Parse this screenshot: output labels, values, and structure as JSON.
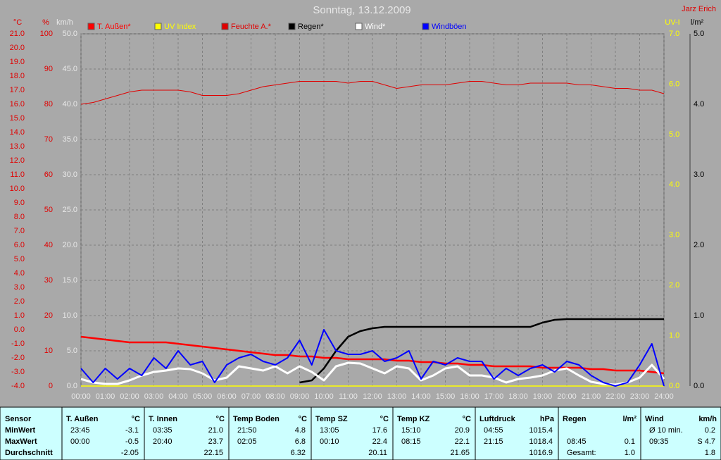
{
  "chart_data": {
    "type": "line",
    "title": "Sonntag, 13.12.2009",
    "author": "Jarz Erich",
    "grid": true,
    "x": [
      0,
      0.5,
      1,
      1.5,
      2,
      2.5,
      3,
      3.5,
      4,
      4.5,
      5,
      5.5,
      6,
      6.5,
      7,
      7.5,
      8,
      8.5,
      9,
      9.5,
      10,
      10.5,
      11,
      11.5,
      12,
      12.5,
      13,
      13.5,
      14,
      14.5,
      15,
      15.5,
      16,
      16.5,
      17,
      17.5,
      18,
      18.5,
      19,
      19.5,
      20,
      20.5,
      21,
      21.5,
      22,
      22.5,
      23,
      23.5,
      24
    ],
    "xlim": [
      0,
      24
    ],
    "xticks": [
      {
        "value": 0,
        "label": "00:00"
      },
      {
        "value": 1,
        "label": "01:00"
      },
      {
        "value": 2,
        "label": "02:00"
      },
      {
        "value": 3,
        "label": "03:00"
      },
      {
        "value": 4,
        "label": "04:00"
      },
      {
        "value": 5,
        "label": "05:00"
      },
      {
        "value": 6,
        "label": "06:00"
      },
      {
        "value": 7,
        "label": "07:00"
      },
      {
        "value": 8,
        "label": "08:00"
      },
      {
        "value": 9,
        "label": "09:00"
      },
      {
        "value": 10,
        "label": "10:00"
      },
      {
        "value": 11,
        "label": "11:00"
      },
      {
        "value": 12,
        "label": "12:00"
      },
      {
        "value": 13,
        "label": "13:00"
      },
      {
        "value": 14,
        "label": "14:00"
      },
      {
        "value": 15,
        "label": "15:00"
      },
      {
        "value": 16,
        "label": "16:00"
      },
      {
        "value": 17,
        "label": "17:00"
      },
      {
        "value": 18,
        "label": "18:00"
      },
      {
        "value": 19,
        "label": "19:00"
      },
      {
        "value": 20,
        "label": "20:00"
      },
      {
        "value": 21,
        "label": "21:00"
      },
      {
        "value": 22,
        "label": "22:00"
      },
      {
        "value": 23,
        "label": "23:00"
      },
      {
        "value": 24,
        "label": "24:00"
      }
    ],
    "axes": [
      {
        "label": "°C",
        "color": "#e00000",
        "lim": [
          -4,
          21
        ],
        "ticks": [
          {
            "value": -4,
            "label": "-4.0"
          },
          {
            "value": -3,
            "label": "-3.0"
          },
          {
            "value": -2,
            "label": "-2.0"
          },
          {
            "value": -1,
            "label": "-1.0"
          },
          {
            "value": 0,
            "label": "0.0"
          },
          {
            "value": 1,
            "label": "1.0"
          },
          {
            "value": 2,
            "label": "2.0"
          },
          {
            "value": 3,
            "label": "3.0"
          },
          {
            "value": 4,
            "label": "4.0"
          },
          {
            "value": 5,
            "label": "5.0"
          },
          {
            "value": 6,
            "label": "6.0"
          },
          {
            "value": 7,
            "label": "7.0"
          },
          {
            "value": 8,
            "label": "8.0"
          },
          {
            "value": 9,
            "label": "9.0"
          },
          {
            "value": 10,
            "label": "10.0"
          },
          {
            "value": 11,
            "label": "11.0"
          },
          {
            "value": 12,
            "label": "12.0"
          },
          {
            "value": 13,
            "label": "13.0"
          },
          {
            "value": 14,
            "label": "14.0"
          },
          {
            "value": 15,
            "label": "15.0"
          },
          {
            "value": 16,
            "label": "16.0"
          },
          {
            "value": 17,
            "label": "17.0"
          },
          {
            "value": 18,
            "label": "18.0"
          },
          {
            "value": 19,
            "label": "19.0"
          },
          {
            "value": 20,
            "label": "20.0"
          },
          {
            "value": 21,
            "label": "21.0"
          }
        ]
      },
      {
        "label": "%",
        "color": "#e00000",
        "lim": [
          0,
          100
        ],
        "ticks": [
          0,
          10,
          20,
          30,
          40,
          50,
          60,
          70,
          80,
          90,
          100
        ]
      },
      {
        "label": "km/h",
        "color": "#e8e8e8",
        "lim": [
          0,
          50
        ],
        "ticks": [
          {
            "value": 0,
            "label": "0.0"
          },
          {
            "value": 5,
            "label": "5.0"
          },
          {
            "value": 10,
            "label": "10.0"
          },
          {
            "value": 15,
            "label": "15.0"
          },
          {
            "value": 20,
            "label": "20.0"
          },
          {
            "value": 25,
            "label": "25.0"
          },
          {
            "value": 30,
            "label": "30.0"
          },
          {
            "value": 35,
            "label": "35.0"
          },
          {
            "value": 40,
            "label": "40.0"
          },
          {
            "value": 45,
            "label": "45.0"
          },
          {
            "value": 50,
            "label": "50.0"
          }
        ]
      },
      {
        "label": "UV-I",
        "color": "#ffff00",
        "lim": [
          0,
          7
        ],
        "ticks": [
          {
            "value": 0,
            "label": "0.0"
          },
          {
            "value": 1,
            "label": "1.0"
          },
          {
            "value": 2,
            "label": "2.0"
          },
          {
            "value": 3,
            "label": "3.0"
          },
          {
            "value": 4,
            "label": "4.0"
          },
          {
            "value": 5,
            "label": "5.0"
          },
          {
            "value": 6,
            "label": "6.0"
          },
          {
            "value": 7,
            "label": "7.0"
          }
        ]
      },
      {
        "label": "l/m²",
        "color": "#000000",
        "lim": [
          0,
          5
        ],
        "ticks": [
          {
            "value": 0,
            "label": "0.0"
          },
          {
            "value": 1,
            "label": "1.0"
          },
          {
            "value": 2,
            "label": "2.0"
          },
          {
            "value": 3,
            "label": "3.0"
          },
          {
            "value": 4,
            "label": "4.0"
          },
          {
            "value": 5,
            "label": "5.0"
          }
        ]
      }
    ],
    "series": [
      {
        "name": "T. Außen*",
        "color": "#ff0000",
        "axis": 0,
        "width": 2.5,
        "values": [
          -0.5,
          -0.6,
          -0.7,
          -0.8,
          -0.9,
          -0.9,
          -0.9,
          -0.9,
          -1.0,
          -1.1,
          -1.2,
          -1.3,
          -1.4,
          -1.5,
          -1.6,
          -1.7,
          -1.8,
          -1.8,
          -1.9,
          -1.9,
          -2.0,
          -2.0,
          -2.1,
          -2.1,
          -2.1,
          -2.1,
          -2.2,
          -2.2,
          -2.3,
          -2.3,
          -2.4,
          -2.4,
          -2.5,
          -2.5,
          -2.6,
          -2.6,
          -2.6,
          -2.6,
          -2.7,
          -2.7,
          -2.7,
          -2.7,
          -2.8,
          -2.8,
          -2.9,
          -2.9,
          -2.9,
          -3.0,
          -3.1
        ]
      },
      {
        "name": "UV Index",
        "color": "#ffff00",
        "axis": 3,
        "width": 1.5,
        "values": [
          0,
          0,
          0,
          0,
          0,
          0,
          0,
          0,
          0,
          0,
          0,
          0,
          0,
          0,
          0,
          0,
          0,
          0,
          0,
          0,
          0,
          0,
          0,
          0,
          0,
          0,
          0,
          0,
          0,
          0,
          0,
          0,
          0,
          0,
          0,
          0,
          0,
          0,
          0,
          0,
          0,
          0,
          0,
          0,
          0,
          0,
          0,
          0,
          0
        ]
      },
      {
        "name": "Feuchte A.*",
        "color": "#e00000",
        "axis": 1,
        "width": 1,
        "values": [
          80,
          80.5,
          81.5,
          82.5,
          83.5,
          84,
          84,
          84,
          84,
          83.5,
          82.5,
          82.5,
          82.5,
          83,
          84,
          85,
          85.5,
          86,
          86.5,
          86.5,
          86.5,
          86.5,
          86,
          86.5,
          86.5,
          85.5,
          84.5,
          85,
          85.5,
          85.5,
          85.5,
          86,
          86.5,
          86.5,
          86,
          85.5,
          85.5,
          86,
          86,
          86,
          86,
          85.5,
          85.5,
          85,
          84.5,
          84.5,
          84,
          84,
          83
        ]
      },
      {
        "name": "Regen*",
        "color": "#000000",
        "axis": 4,
        "width": 2.5,
        "values": [
          null,
          null,
          null,
          null,
          null,
          null,
          null,
          null,
          null,
          null,
          null,
          null,
          null,
          null,
          null,
          null,
          null,
          null,
          0.05,
          0.08,
          0.25,
          0.5,
          0.7,
          0.78,
          0.82,
          0.84,
          0.84,
          0.84,
          0.84,
          0.84,
          0.84,
          0.84,
          0.84,
          0.84,
          0.84,
          0.84,
          0.84,
          0.84,
          0.9,
          0.94,
          0.95,
          0.95,
          0.95,
          0.95,
          0.95,
          0.95,
          0.95,
          0.95,
          0.95
        ]
      },
      {
        "name": "Wind*",
        "color": "#ffffff",
        "axis": 2,
        "width": 3,
        "values": [
          1,
          0.5,
          0.3,
          0.3,
          0.8,
          1.5,
          2,
          2.2,
          2.5,
          2.4,
          1.8,
          0.8,
          1.2,
          2.8,
          2.5,
          2.2,
          2.8,
          1.8,
          2.8,
          2,
          0.8,
          2.8,
          3.3,
          3.2,
          2.5,
          1.8,
          2.8,
          2.5,
          0.8,
          1.5,
          2.5,
          2.8,
          1.5,
          1.5,
          1.2,
          0.5,
          1,
          1.2,
          1.5,
          2.2,
          2.5,
          1.5,
          0.6,
          0.3,
          0.2,
          0.5,
          1.2,
          3,
          1
        ]
      },
      {
        "name": "Windböen",
        "color": "#0000ff",
        "axis": 2,
        "width": 2,
        "values": [
          2.5,
          0.5,
          2.5,
          1,
          2.5,
          1.5,
          4,
          2.5,
          5,
          3,
          3.5,
          0.5,
          3,
          4,
          4.5,
          3.5,
          3,
          4,
          6.5,
          3,
          8,
          5,
          4.5,
          4.5,
          5,
          3.5,
          4,
          5,
          1,
          3.5,
          3,
          4,
          3.5,
          3.5,
          1,
          2.5,
          1.5,
          2.5,
          3,
          2,
          3.5,
          3,
          1.5,
          0.5,
          0,
          0.5,
          3,
          6,
          0
        ]
      }
    ]
  },
  "stats": {
    "row_labels": [
      "Sensor",
      "MinWert",
      "MaxWert",
      "Durchschnitt"
    ],
    "columns": [
      {
        "header": "T. Außen",
        "unit": "°C",
        "rows": [
          [
            "23:45",
            "-3.1"
          ],
          [
            "00:00",
            "-0.5"
          ],
          [
            null,
            "-2.05"
          ]
        ]
      },
      {
        "header": "T. Innen",
        "unit": "°C",
        "rows": [
          [
            "03:35",
            "21.0"
          ],
          [
            "20:40",
            "23.7"
          ],
          [
            null,
            "22.15"
          ]
        ]
      },
      {
        "header": "Temp Boden",
        "unit": "°C",
        "rows": [
          [
            "21:50",
            "4.8"
          ],
          [
            "02:05",
            "6.8"
          ],
          [
            null,
            "6.32"
          ]
        ]
      },
      {
        "header": "Temp SZ",
        "unit": "°C",
        "rows": [
          [
            "13:05",
            "17.6"
          ],
          [
            "00:10",
            "22.4"
          ],
          [
            null,
            "20.11"
          ]
        ]
      },
      {
        "header": "Temp KZ",
        "unit": "°C",
        "rows": [
          [
            "15:10",
            "20.9"
          ],
          [
            "08:15",
            "22.1"
          ],
          [
            null,
            "21.65"
          ]
        ]
      },
      {
        "header": "Luftdruck",
        "unit": "hPa",
        "rows": [
          [
            "04:55",
            "1015.4"
          ],
          [
            "21:15",
            "1018.4"
          ],
          [
            null,
            "1016.9"
          ]
        ]
      },
      {
        "header": "Regen",
        "unit": "l/m²",
        "rows": [
          [
            null,
            null
          ],
          [
            "08:45",
            "0.1"
          ],
          [
            "Gesamt:",
            "1.0"
          ]
        ]
      },
      {
        "header": "Wind",
        "unit": "km/h",
        "rows": [
          [
            "Ø 10 min.",
            "0.2"
          ],
          [
            "09:35",
            "S 4.7"
          ],
          [
            null,
            "1.8"
          ]
        ]
      }
    ]
  }
}
